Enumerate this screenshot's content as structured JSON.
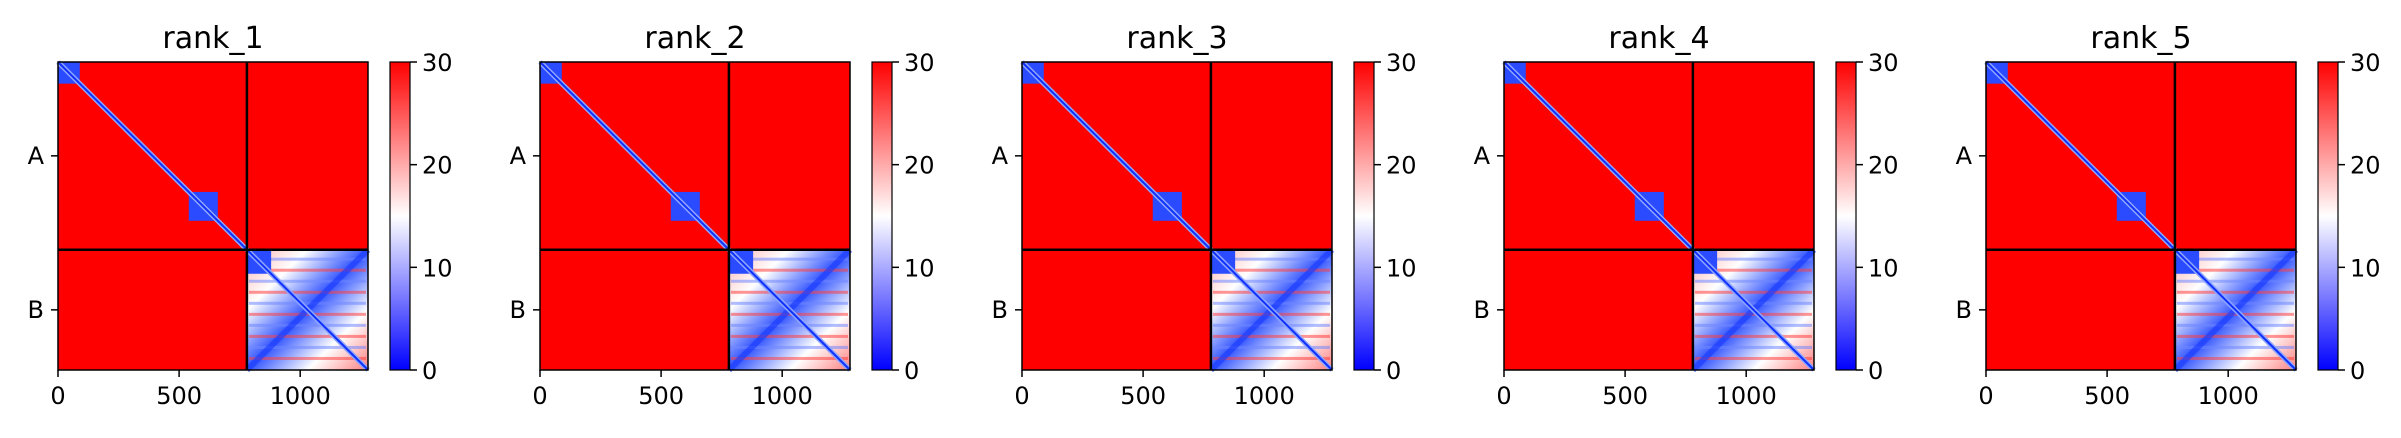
{
  "chart_data": [
    {
      "type": "heatmap",
      "title": "rank_1",
      "xticks": [
        0,
        500,
        1000
      ],
      "xlim": [
        0,
        1280
      ],
      "y_categories": [
        "A",
        "B"
      ],
      "chain_boundary": 780,
      "colorbar": {
        "ticks": [
          0,
          10,
          20,
          30
        ],
        "range": [
          0,
          30
        ],
        "colormap": "bwr",
        "colors": [
          "#0000ff",
          "#ffffff",
          "#ff0000"
        ]
      },
      "grid": false
    },
    {
      "type": "heatmap",
      "title": "rank_2",
      "xticks": [
        0,
        500,
        1000
      ],
      "xlim": [
        0,
        1280
      ],
      "y_categories": [
        "A",
        "B"
      ],
      "chain_boundary": 780,
      "colorbar": {
        "ticks": [
          0,
          10,
          20,
          30
        ],
        "range": [
          0,
          30
        ],
        "colormap": "bwr",
        "colors": [
          "#0000ff",
          "#ffffff",
          "#ff0000"
        ]
      },
      "grid": false
    },
    {
      "type": "heatmap",
      "title": "rank_3",
      "xticks": [
        0,
        500,
        1000
      ],
      "xlim": [
        0,
        1280
      ],
      "y_categories": [
        "A",
        "B"
      ],
      "chain_boundary": 780,
      "colorbar": {
        "ticks": [
          0,
          10,
          20,
          30
        ],
        "range": [
          0,
          30
        ],
        "colormap": "bwr",
        "colors": [
          "#0000ff",
          "#ffffff",
          "#ff0000"
        ]
      },
      "grid": false
    },
    {
      "type": "heatmap",
      "title": "rank_4",
      "xticks": [
        0,
        500,
        1000
      ],
      "xlim": [
        0,
        1280
      ],
      "y_categories": [
        "A",
        "B"
      ],
      "chain_boundary": 780,
      "colorbar": {
        "ticks": [
          0,
          10,
          20,
          30
        ],
        "range": [
          0,
          30
        ],
        "colormap": "bwr",
        "colors": [
          "#0000ff",
          "#ffffff",
          "#ff0000"
        ]
      },
      "grid": false
    },
    {
      "type": "heatmap",
      "title": "rank_5",
      "xticks": [
        0,
        500,
        1000
      ],
      "xlim": [
        0,
        1280
      ],
      "y_categories": [
        "A",
        "B"
      ],
      "chain_boundary": 780,
      "colorbar": {
        "ticks": [
          0,
          10,
          20,
          30
        ],
        "range": [
          0,
          30
        ],
        "colormap": "bwr",
        "colors": [
          "#0000ff",
          "#ffffff",
          "#ff0000"
        ]
      },
      "grid": false
    }
  ]
}
